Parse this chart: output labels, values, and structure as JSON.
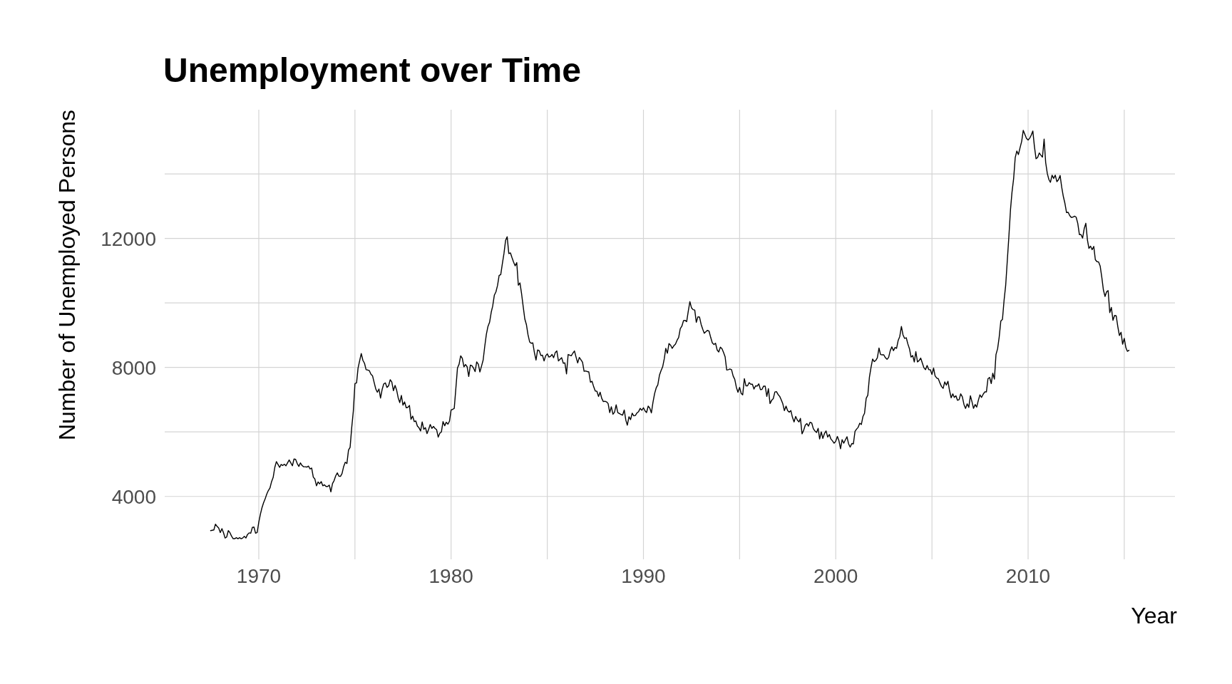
{
  "chart_data": {
    "type": "line",
    "title": "Unemployment over Time",
    "xlabel": "Year",
    "ylabel": "Number of Unemployed Persons",
    "x": [
      "1967-07",
      "1967-08",
      "1967-09",
      "1967-10",
      "1967-11",
      "1967-12",
      "1968-01",
      "1968-02",
      "1968-03",
      "1968-04",
      "1968-05",
      "1968-06",
      "1968-07",
      "1968-08",
      "1968-09",
      "1968-10",
      "1968-11",
      "1968-12",
      "1969-01",
      "1969-02",
      "1969-03",
      "1969-04",
      "1969-05",
      "1969-06",
      "1969-07",
      "1969-08",
      "1969-09",
      "1969-10",
      "1969-11",
      "1969-12",
      "1970-01",
      "1970-02",
      "1970-03",
      "1970-04",
      "1970-05",
      "1970-06",
      "1970-07",
      "1970-08",
      "1970-09",
      "1970-10",
      "1970-11",
      "1970-12",
      "1971-01",
      "1971-02",
      "1971-03",
      "1971-04",
      "1971-05",
      "1971-06",
      "1971-07",
      "1971-08",
      "1971-09",
      "1971-10",
      "1971-11",
      "1971-12",
      "1972-01",
      "1972-02",
      "1972-03",
      "1972-04",
      "1972-05",
      "1972-06",
      "1972-07",
      "1972-08",
      "1972-09",
      "1972-10",
      "1972-11",
      "1972-12",
      "1973-01",
      "1973-02",
      "1973-03",
      "1973-04",
      "1973-05",
      "1973-06",
      "1973-07",
      "1973-08",
      "1973-09",
      "1973-10",
      "1973-11",
      "1973-12",
      "1974-01",
      "1974-02",
      "1974-03",
      "1974-04",
      "1974-05",
      "1974-06",
      "1974-07",
      "1974-08",
      "1974-09",
      "1974-10",
      "1974-11",
      "1974-12",
      "1975-01",
      "1975-02",
      "1975-03",
      "1975-04",
      "1975-05",
      "1975-06",
      "1975-07",
      "1975-08",
      "1975-09",
      "1975-10",
      "1975-11",
      "1975-12",
      "1976-01",
      "1976-02",
      "1976-03",
      "1976-04",
      "1976-05",
      "1976-06",
      "1976-07",
      "1976-08",
      "1976-09",
      "1976-10",
      "1976-11",
      "1976-12",
      "1977-01",
      "1977-02",
      "1977-03",
      "1977-04",
      "1977-05",
      "1977-06",
      "1977-07",
      "1977-08",
      "1977-09",
      "1977-10",
      "1977-11",
      "1977-12",
      "1978-01",
      "1978-02",
      "1978-03",
      "1978-04",
      "1978-05",
      "1978-06",
      "1978-07",
      "1978-08",
      "1978-09",
      "1978-10",
      "1978-11",
      "1978-12",
      "1979-01",
      "1979-02",
      "1979-03",
      "1979-04",
      "1979-05",
      "1979-06",
      "1979-07",
      "1979-08",
      "1979-09",
      "1979-10",
      "1979-11",
      "1979-12",
      "1980-01",
      "1980-02",
      "1980-03",
      "1980-04",
      "1980-05",
      "1980-06",
      "1980-07",
      "1980-08",
      "1980-09",
      "1980-10",
      "1980-11",
      "1980-12",
      "1981-01",
      "1981-02",
      "1981-03",
      "1981-04",
      "1981-05",
      "1981-06",
      "1981-07",
      "1981-08",
      "1981-09",
      "1981-10",
      "1981-11",
      "1981-12",
      "1982-01",
      "1982-02",
      "1982-03",
      "1982-04",
      "1982-05",
      "1982-06",
      "1982-07",
      "1982-08",
      "1982-09",
      "1982-10",
      "1982-11",
      "1982-12",
      "1983-01",
      "1983-02",
      "1983-03",
      "1983-04",
      "1983-05",
      "1983-06",
      "1983-07",
      "1983-08",
      "1983-09",
      "1983-10",
      "1983-11",
      "1983-12",
      "1984-01",
      "1984-02",
      "1984-03",
      "1984-04",
      "1984-05",
      "1984-06",
      "1984-07",
      "1984-08",
      "1984-09",
      "1984-10",
      "1984-11",
      "1984-12",
      "1985-01",
      "1985-02",
      "1985-03",
      "1985-04",
      "1985-05",
      "1985-06",
      "1985-07",
      "1985-08",
      "1985-09",
      "1985-10",
      "1985-11",
      "1985-12",
      "1986-01",
      "1986-02",
      "1986-03",
      "1986-04",
      "1986-05",
      "1986-06",
      "1986-07",
      "1986-08",
      "1986-09",
      "1986-10",
      "1986-11",
      "1986-12",
      "1987-01",
      "1987-02",
      "1987-03",
      "1987-04",
      "1987-05",
      "1987-06",
      "1987-07",
      "1987-08",
      "1987-09",
      "1987-10",
      "1987-11",
      "1987-12",
      "1988-01",
      "1988-02",
      "1988-03",
      "1988-04",
      "1988-05",
      "1988-06",
      "1988-07",
      "1988-08",
      "1988-09",
      "1988-10",
      "1988-11",
      "1988-12",
      "1989-01",
      "1989-02",
      "1989-03",
      "1989-04",
      "1989-05",
      "1989-06",
      "1989-07",
      "1989-08",
      "1989-09",
      "1989-10",
      "1989-11",
      "1989-12",
      "1990-01",
      "1990-02",
      "1990-03",
      "1990-04",
      "1990-05",
      "1990-06",
      "1990-07",
      "1990-08",
      "1990-09",
      "1990-10",
      "1990-11",
      "1990-12",
      "1991-01",
      "1991-02",
      "1991-03",
      "1991-04",
      "1991-05",
      "1991-06",
      "1991-07",
      "1991-08",
      "1991-09",
      "1991-10",
      "1991-11",
      "1991-12",
      "1992-01",
      "1992-02",
      "1992-03",
      "1992-04",
      "1992-05",
      "1992-06",
      "1992-07",
      "1992-08",
      "1992-09",
      "1992-10",
      "1992-11",
      "1992-12",
      "1993-01",
      "1993-02",
      "1993-03",
      "1993-04",
      "1993-05",
      "1993-06",
      "1993-07",
      "1993-08",
      "1993-09",
      "1993-10",
      "1993-11",
      "1993-12",
      "1994-01",
      "1994-02",
      "1994-03",
      "1994-04",
      "1994-05",
      "1994-06",
      "1994-07",
      "1994-08",
      "1994-09",
      "1994-10",
      "1994-11",
      "1994-12",
      "1995-01",
      "1995-02",
      "1995-03",
      "1995-04",
      "1995-05",
      "1995-06",
      "1995-07",
      "1995-08",
      "1995-09",
      "1995-10",
      "1995-11",
      "1995-12",
      "1996-01",
      "1996-02",
      "1996-03",
      "1996-04",
      "1996-05",
      "1996-06",
      "1996-07",
      "1996-08",
      "1996-09",
      "1996-10",
      "1996-11",
      "1996-12",
      "1997-01",
      "1997-02",
      "1997-03",
      "1997-04",
      "1997-05",
      "1997-06",
      "1997-07",
      "1997-08",
      "1997-09",
      "1997-10",
      "1997-11",
      "1997-12",
      "1998-01",
      "1998-02",
      "1998-03",
      "1998-04",
      "1998-05",
      "1998-06",
      "1998-07",
      "1998-08",
      "1998-09",
      "1998-10",
      "1998-11",
      "1998-12",
      "1999-01",
      "1999-02",
      "1999-03",
      "1999-04",
      "1999-05",
      "1999-06",
      "1999-07",
      "1999-08",
      "1999-09",
      "1999-10",
      "1999-11",
      "1999-12",
      "2000-01",
      "2000-02",
      "2000-03",
      "2000-04",
      "2000-05",
      "2000-06",
      "2000-07",
      "2000-08",
      "2000-09",
      "2000-10",
      "2000-11",
      "2000-12",
      "2001-01",
      "2001-02",
      "2001-03",
      "2001-04",
      "2001-05",
      "2001-06",
      "2001-07",
      "2001-08",
      "2001-09",
      "2001-10",
      "2001-11",
      "2001-12",
      "2002-01",
      "2002-02",
      "2002-03",
      "2002-04",
      "2002-05",
      "2002-06",
      "2002-07",
      "2002-08",
      "2002-09",
      "2002-10",
      "2002-11",
      "2002-12",
      "2003-01",
      "2003-02",
      "2003-03",
      "2003-04",
      "2003-05",
      "2003-06",
      "2003-07",
      "2003-08",
      "2003-09",
      "2003-10",
      "2003-11",
      "2003-12",
      "2004-01",
      "2004-02",
      "2004-03",
      "2004-04",
      "2004-05",
      "2004-06",
      "2004-07",
      "2004-08",
      "2004-09",
      "2004-10",
      "2004-11",
      "2004-12",
      "2005-01",
      "2005-02",
      "2005-03",
      "2005-04",
      "2005-05",
      "2005-06",
      "2005-07",
      "2005-08",
      "2005-09",
      "2005-10",
      "2005-11",
      "2005-12",
      "2006-01",
      "2006-02",
      "2006-03",
      "2006-04",
      "2006-05",
      "2006-06",
      "2006-07",
      "2006-08",
      "2006-09",
      "2006-10",
      "2006-11",
      "2006-12",
      "2007-01",
      "2007-02",
      "2007-03",
      "2007-04",
      "2007-05",
      "2007-06",
      "2007-07",
      "2007-08",
      "2007-09",
      "2007-10",
      "2007-11",
      "2007-12",
      "2008-01",
      "2008-02",
      "2008-03",
      "2008-04",
      "2008-05",
      "2008-06",
      "2008-07",
      "2008-08",
      "2008-09",
      "2008-10",
      "2008-11",
      "2008-12",
      "2009-01",
      "2009-02",
      "2009-03",
      "2009-04",
      "2009-05",
      "2009-06",
      "2009-07",
      "2009-08",
      "2009-09",
      "2009-10",
      "2009-11",
      "2009-12",
      "2010-01",
      "2010-02",
      "2010-03",
      "2010-04",
      "2010-05",
      "2010-06",
      "2010-07",
      "2010-08",
      "2010-09",
      "2010-10",
      "2010-11",
      "2010-12",
      "2011-01",
      "2011-02",
      "2011-03",
      "2011-04",
      "2011-05",
      "2011-06",
      "2011-07",
      "2011-08",
      "2011-09",
      "2011-10",
      "2011-11",
      "2011-12",
      "2012-01",
      "2012-02",
      "2012-03",
      "2012-04",
      "2012-05",
      "2012-06",
      "2012-07",
      "2012-08",
      "2012-09",
      "2012-10",
      "2012-11",
      "2012-12",
      "2013-01",
      "2013-02",
      "2013-03",
      "2013-04",
      "2013-05",
      "2013-06",
      "2013-07",
      "2013-08",
      "2013-09",
      "2013-10",
      "2013-11",
      "2013-12",
      "2014-01",
      "2014-02",
      "2014-03",
      "2014-04",
      "2014-05",
      "2014-06",
      "2014-07",
      "2014-08",
      "2014-09",
      "2014-10",
      "2014-11",
      "2014-12",
      "2015-01",
      "2015-02",
      "2015-03",
      "2015-04"
    ],
    "values": [
      2940,
      2950,
      2960,
      3140,
      3070,
      3020,
      2880,
      3000,
      2880,
      2710,
      2740,
      2940,
      2880,
      2770,
      2690,
      2690,
      2720,
      2690,
      2720,
      2690,
      2710,
      2760,
      2710,
      2820,
      2870,
      2860,
      3040,
      3050,
      2860,
      2880,
      3200,
      3450,
      3640,
      3800,
      3920,
      4070,
      4180,
      4260,
      4460,
      4590,
      4900,
      5080,
      4990,
      4900,
      4990,
      4960,
      5000,
      4950,
      5040,
      5130,
      5040,
      4950,
      5160,
      5150,
      5020,
      4930,
      5040,
      4960,
      4920,
      4920,
      4910,
      4940,
      4850,
      4880,
      4600,
      4540,
      4330,
      4450,
      4390,
      4460,
      4330,
      4360,
      4310,
      4310,
      4350,
      4140,
      4400,
      4490,
      4640,
      4730,
      4630,
      4620,
      4710,
      4930,
      5060,
      5020,
      5440,
      5520,
      6140,
      6640,
      7500,
      7520,
      7980,
      8210,
      8430,
      8220,
      8130,
      7930,
      7920,
      7900,
      7790,
      7740,
      7530,
      7330,
      7230,
      7330,
      7050,
      7320,
      7490,
      7520,
      7380,
      7430,
      7620,
      7550,
      7280,
      7440,
      7310,
      7060,
      6910,
      7130,
      6830,
      6930,
      6750,
      6760,
      6820,
      6390,
      6490,
      6320,
      6340,
      6180,
      6130,
      6030,
      6310,
      6080,
      6130,
      5950,
      6080,
      6230,
      6110,
      6170,
      6110,
      6070,
      5840,
      5960,
      6000,
      6320,
      6190,
      6300,
      6240,
      6330,
      6680,
      6700,
      6730,
      7360,
      7980,
      8100,
      8360,
      8280,
      8020,
      8090,
      8020,
      7720,
      8070,
      8050,
      7980,
      7870,
      8170,
      8100,
      7860,
      8040,
      8230,
      8650,
      9030,
      9270,
      9400,
      9710,
      9900,
      10240,
      10340,
      10540,
      10850,
      10880,
      11220,
      11530,
      11940,
      12050,
      11530,
      11550,
      11410,
      11270,
      11150,
      11250,
      10550,
      10620,
      10280,
      9890,
      9500,
      9330,
      9010,
      8790,
      8750,
      8760,
      8460,
      8230,
      8540,
      8520,
      8370,
      8380,
      8200,
      8360,
      8420,
      8320,
      8340,
      8400,
      8300,
      8460,
      8510,
      8200,
      8250,
      8300,
      8130,
      8140,
      7800,
      8400,
      8380,
      8360,
      8440,
      8510,
      8320,
      8140,
      8310,
      8240,
      8160,
      7880,
      7890,
      7870,
      7860,
      7540,
      7570,
      7400,
      7270,
      7260,
      7100,
      7230,
      7040,
      6940,
      6950,
      6930,
      6880,
      6600,
      6780,
      6550,
      6610,
      6840,
      6600,
      6570,
      6540,
      6520,
      6680,
      6360,
      6210,
      6470,
      6380,
      6580,
      6500,
      6510,
      6590,
      6630,
      6730,
      6670,
      6750,
      6650,
      6600,
      6800,
      6740,
      6590,
      6920,
      7190,
      7370,
      7460,
      7760,
      7900,
      8020,
      8270,
      8590,
      8440,
      8740,
      8690,
      8590,
      8670,
      8720,
      8840,
      8930,
      9200,
      9280,
      9450,
      9460,
      9420,
      9740,
      10040,
      9850,
      9790,
      9780,
      9400,
      9570,
      9560,
      9330,
      9180,
      9060,
      9110,
      9150,
      9120,
      8930,
      8760,
      8710,
      8750,
      8540,
      8480,
      8630,
      8580,
      8470,
      8330,
      7920,
      7930,
      7950,
      7930,
      7730,
      7630,
      7380,
      7230,
      7380,
      7190,
      7150,
      7650,
      7430,
      7430,
      7530,
      7480,
      7480,
      7330,
      7430,
      7420,
      7490,
      7310,
      7320,
      7420,
      7420,
      7100,
      7340,
      6880,
      6980,
      7030,
      7240,
      7250,
      7160,
      7100,
      7000,
      6870,
      6660,
      6800,
      6660,
      6610,
      6660,
      6450,
      6310,
      6480,
      6370,
      6310,
      6420,
      5940,
      6050,
      6210,
      6260,
      6180,
      6300,
      6280,
      6100,
      6030,
      5980,
      6110,
      5780,
      6000,
      5800,
      5950,
      6030,
      5840,
      5920,
      5780,
      5720,
      5650,
      5710,
      5860,
      5730,
      5480,
      5760,
      5650,
      5750,
      5850,
      5630,
      5530,
      5640,
      5630,
      6020,
      6090,
      6140,
      6270,
      6230,
      6480,
      6580,
      7040,
      7140,
      7690,
      8000,
      8260,
      8180,
      8220,
      8300,
      8600,
      8400,
      8390,
      8390,
      8300,
      8250,
      8310,
      8520,
      8640,
      8520,
      8620,
      8590,
      8840,
      8960,
      9270,
      9010,
      8900,
      8920,
      8730,
      8580,
      8320,
      8370,
      8170,
      8490,
      8170,
      8210,
      8290,
      8140,
      7990,
      7930,
      8060,
      7930,
      7930,
      7780,
      7980,
      7740,
      7670,
      7650,
      7520,
      7410,
      7350,
      7550,
      7450,
      7570,
      7280,
      7060,
      7180,
      7070,
      7120,
      6980,
      7000,
      7180,
      7090,
      6850,
      6730,
      6870,
      6760,
      7120,
      6930,
      6730,
      6850,
      6770,
      6980,
      7150,
      7070,
      7170,
      7240,
      7240,
      7650,
      7690,
      7500,
      7820,
      7640,
      8400,
      8580,
      8940,
      9440,
      9490,
      10070,
      10540,
      11290,
      12060,
      12900,
      13430,
      13850,
      14500,
      14710,
      14600,
      14810,
      15010,
      15350,
      15220,
      15100,
      15050,
      15110,
      15200,
      15330,
      14850,
      14470,
      14510,
      14650,
      14580,
      14520,
      15080,
      14350,
      14010,
      13820,
      13740,
      13960,
      13860,
      13960,
      13760,
      13820,
      13950,
      13590,
      13300,
      13090,
      12800,
      12810,
      12710,
      12650,
      12660,
      12690,
      12660,
      12470,
      12120,
      12120,
      12010,
      12300,
      12470,
      11950,
      11690,
      11760,
      11650,
      11750,
      11340,
      11280,
      11270,
      11140,
      10790,
      10400,
      10200,
      10350,
      10380,
      9700,
      9860,
      9460,
      9610,
      9600,
      9260,
      8990,
      9090,
      8720,
      8900,
      8610,
      8500,
      8530
    ],
    "color": "#000000",
    "xlim": [
      "1965-02-09",
      "2017-08-21"
    ],
    "xticks": [
      "1970",
      {
        "value": "1975",
        "label": null
      },
      "1980",
      {
        "value": "1985",
        "label": null
      },
      "1990",
      {
        "value": "1995",
        "label": null
      },
      "2000",
      {
        "value": "2005",
        "label": null
      },
      "2010",
      {
        "value": "2015",
        "label": null
      }
    ],
    "ylim": [
      2050,
      15990
    ],
    "yticks": [
      4000,
      {
        "value": 6000,
        "label": null
      },
      8000,
      {
        "value": 10000,
        "label": null
      },
      12000,
      {
        "value": 14000,
        "label": null
      }
    ],
    "grid": true
  }
}
